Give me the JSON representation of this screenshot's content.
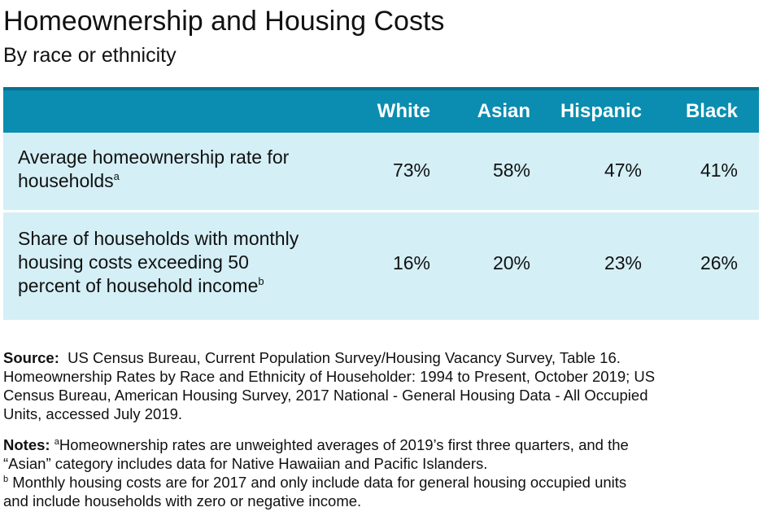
{
  "title": "Homeownership and Housing Costs",
  "subtitle": "By race or ethnicity",
  "chart_data": {
    "type": "table",
    "columns": [
      "White",
      "Asian",
      "Hispanic",
      "Black"
    ],
    "rows": [
      {
        "label": "Average homeownership rate for households",
        "label_line1": "Average homeownership rate for",
        "label_line2": "households",
        "footnote_mark": "a",
        "values": [
          "73%",
          "58%",
          "47%",
          "41%"
        ]
      },
      {
        "label": "Share of households with monthly housing costs exceeding 50 percent of household income",
        "label_line1": "Share of households with monthly",
        "label_line2": "housing costs exceeding 50",
        "label_line3": "percent of household income",
        "footnote_mark": "b",
        "values": [
          "16%",
          "20%",
          "23%",
          "26%"
        ]
      }
    ],
    "colors": {
      "header_bg": "#0a8db0",
      "header_text": "#ffffff",
      "body_bg": "#d4eff6"
    }
  },
  "source": {
    "label": "Source:",
    "line1": "US Census Bureau, Current Population Survey/Housing Vacancy Survey, Table 16.",
    "line2": "Homeownership Rates by Race and Ethnicity of Householder: 1994 to Present, October 2019; US",
    "line3": "Census Bureau, American Housing Survey, 2017 National - General Housing Data - All Occupied",
    "line4": "Units, accessed July 2019."
  },
  "notes": {
    "label": "Notes:",
    "mark_a": "a",
    "note_a_line1": "Homeownership rates are unweighted averages of 2019’s first three quarters, and the",
    "note_a_line2": "“Asian” category includes data for Native Hawaiian and Pacific Islanders.",
    "mark_b": "b",
    "note_b_line1": " Monthly housing costs are for 2017 and only include data for general housing occupied units",
    "note_b_line2": "and include households with zero or negative income."
  }
}
